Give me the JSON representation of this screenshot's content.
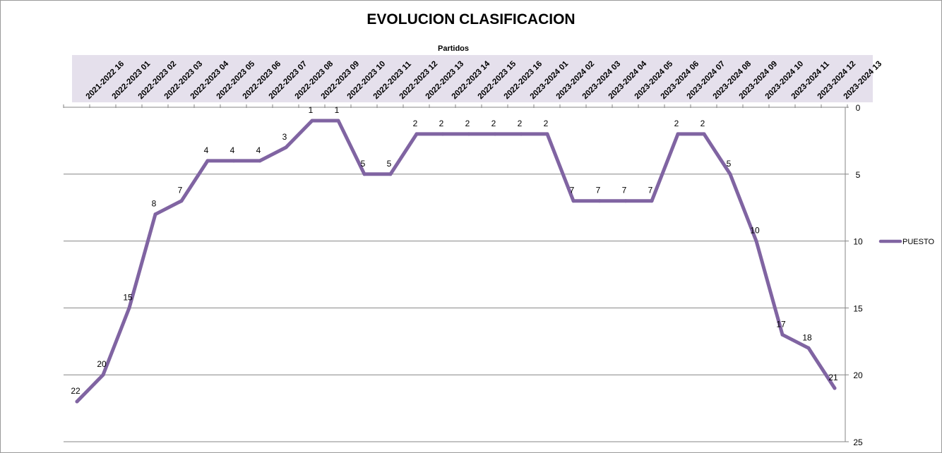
{
  "chart_data": {
    "type": "line",
    "title": "EVOLUCION CLASIFICACION",
    "xlabel": "Partidos",
    "xaxis_position": "top",
    "yaxis_position": "right",
    "y_reversed": true,
    "ylim": [
      0,
      25
    ],
    "yticks": [
      0,
      5,
      10,
      15,
      20,
      25
    ],
    "grid": true,
    "legend_position": "right",
    "categories": [
      "2021-2022 16",
      "2022-2023 01",
      "2022-2023 02",
      "2022-2023 03",
      "2022-2023 04",
      "2022-2023 05",
      "2022-2023 06",
      "2022-2023 07",
      "2022-2023 08",
      "2022-2023 09",
      "2022-2023 10",
      "2022-2023 11",
      "2022-2023 12",
      "2022-2023 13",
      "2022-2023 14",
      "2022-2023 15",
      "2022-2023 16",
      "2023-2024 01",
      "2023-2024 02",
      "2023-2024 03",
      "2023-2024 04",
      "2023-2024 05",
      "2023-2024 06",
      "2023-2024 07",
      "2023-2024 08",
      "2023-2024 09",
      "2023-2024 10",
      "2023-2024 11",
      "2023-2024 12",
      "2023-2024 13"
    ],
    "series": [
      {
        "name": "PUESTO",
        "color": "#8064a2",
        "values": [
          22,
          20,
          15,
          8,
          7,
          4,
          4,
          4,
          3,
          1,
          1,
          5,
          5,
          2,
          2,
          2,
          2,
          2,
          2,
          7,
          7,
          7,
          7,
          2,
          2,
          5,
          10,
          17,
          18,
          21
        ]
      }
    ]
  },
  "colors": {
    "category_band": "#e5e0ec",
    "gridline": "#868686",
    "frame": "#9a9a9a"
  }
}
